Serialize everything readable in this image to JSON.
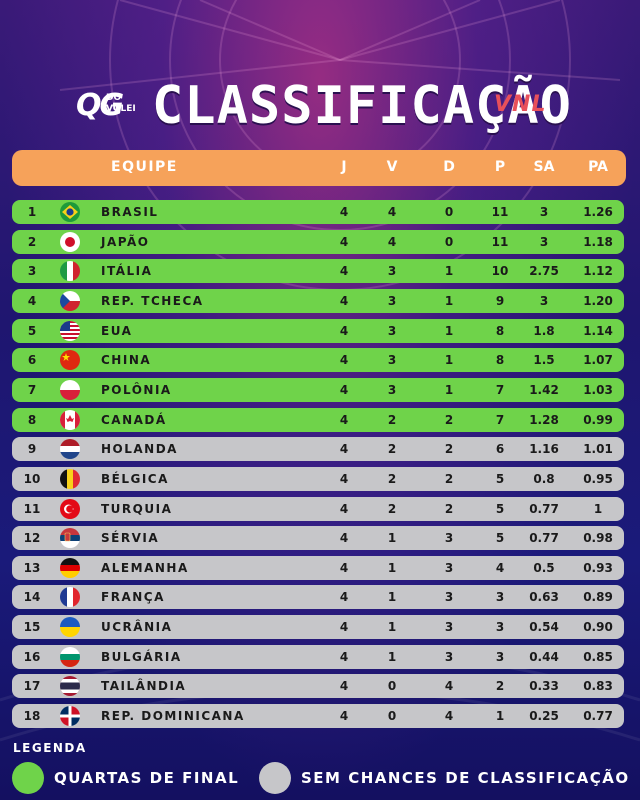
{
  "title": "CLASSIFICAÇÃO",
  "logo": {
    "main": "QG",
    "sub1": "DO",
    "sub2": "VOLEI"
  },
  "vnl": "VNL",
  "columns": {
    "team": "EQUIPE",
    "j": "J",
    "v": "V",
    "d": "D",
    "p": "P",
    "sa": "SA",
    "pa": "PA"
  },
  "colors": {
    "qualified": "#6fd34a",
    "eliminated": "#c6c6c9",
    "header": "#f6a25a"
  },
  "rows": [
    {
      "pos": "1",
      "team": "BRASIL",
      "flag": "brazil-flag-icon",
      "j": "4",
      "v": "4",
      "d": "0",
      "p": "11",
      "sa": "3",
      "pa": "1.26",
      "status": "q"
    },
    {
      "pos": "2",
      "team": "JAPÃO",
      "flag": "japan-flag-icon",
      "j": "4",
      "v": "4",
      "d": "0",
      "p": "11",
      "sa": "3",
      "pa": "1.18",
      "status": "q"
    },
    {
      "pos": "3",
      "team": "ITÁLIA",
      "flag": "italy-flag-icon",
      "j": "4",
      "v": "3",
      "d": "1",
      "p": "10",
      "sa": "2.75",
      "pa": "1.12",
      "status": "q"
    },
    {
      "pos": "4",
      "team": "REP. TCHECA",
      "flag": "czech-flag-icon",
      "j": "4",
      "v": "3",
      "d": "1",
      "p": "9",
      "sa": "3",
      "pa": "1.20",
      "status": "q"
    },
    {
      "pos": "5",
      "team": "EUA",
      "flag": "usa-flag-icon",
      "j": "4",
      "v": "3",
      "d": "1",
      "p": "8",
      "sa": "1.8",
      "pa": "1.14",
      "status": "q"
    },
    {
      "pos": "6",
      "team": "CHINA",
      "flag": "china-flag-icon",
      "j": "4",
      "v": "3",
      "d": "1",
      "p": "8",
      "sa": "1.5",
      "pa": "1.07",
      "status": "q"
    },
    {
      "pos": "7",
      "team": "POLÔNIA",
      "flag": "poland-flag-icon",
      "j": "4",
      "v": "3",
      "d": "1",
      "p": "7",
      "sa": "1.42",
      "pa": "1.03",
      "status": "q"
    },
    {
      "pos": "8",
      "team": "CANADÁ",
      "flag": "canada-flag-icon",
      "j": "4",
      "v": "2",
      "d": "2",
      "p": "7",
      "sa": "1.28",
      "pa": "0.99",
      "status": "q"
    },
    {
      "pos": "9",
      "team": "HOLANDA",
      "flag": "netherlands-flag-icon",
      "j": "4",
      "v": "2",
      "d": "2",
      "p": "6",
      "sa": "1.16",
      "pa": "1.01",
      "status": "s"
    },
    {
      "pos": "10",
      "team": "BÉLGICA",
      "flag": "belgium-flag-icon",
      "j": "4",
      "v": "2",
      "d": "2",
      "p": "5",
      "sa": "0.8",
      "pa": "0.95",
      "status": "s"
    },
    {
      "pos": "11",
      "team": "TURQUIA",
      "flag": "turkey-flag-icon",
      "j": "4",
      "v": "2",
      "d": "2",
      "p": "5",
      "sa": "0.77",
      "pa": "1",
      "status": "s"
    },
    {
      "pos": "12",
      "team": "SÉRVIA",
      "flag": "serbia-flag-icon",
      "j": "4",
      "v": "1",
      "d": "3",
      "p": "5",
      "sa": "0.77",
      "pa": "0.98",
      "status": "s"
    },
    {
      "pos": "13",
      "team": "ALEMANHA",
      "flag": "germany-flag-icon",
      "j": "4",
      "v": "1",
      "d": "3",
      "p": "4",
      "sa": "0.5",
      "pa": "0.93",
      "status": "s"
    },
    {
      "pos": "14",
      "team": "FRANÇA",
      "flag": "france-flag-icon",
      "j": "4",
      "v": "1",
      "d": "3",
      "p": "3",
      "sa": "0.63",
      "pa": "0.89",
      "status": "s"
    },
    {
      "pos": "15",
      "team": "UCRÂNIA",
      "flag": "ukraine-flag-icon",
      "j": "4",
      "v": "1",
      "d": "3",
      "p": "3",
      "sa": "0.54",
      "pa": "0.90",
      "status": "s"
    },
    {
      "pos": "16",
      "team": "BULGÁRIA",
      "flag": "bulgaria-flag-icon",
      "j": "4",
      "v": "1",
      "d": "3",
      "p": "3",
      "sa": "0.44",
      "pa": "0.85",
      "status": "s"
    },
    {
      "pos": "17",
      "team": "TAILÂNDIA",
      "flag": "thailand-flag-icon",
      "j": "4",
      "v": "0",
      "d": "4",
      "p": "2",
      "sa": "0.33",
      "pa": "0.83",
      "status": "s"
    },
    {
      "pos": "18",
      "team": "REP. DOMINICANA",
      "flag": "dominican-republic-flag-icon",
      "j": "4",
      "v": "0",
      "d": "4",
      "p": "1",
      "sa": "0.25",
      "pa": "0.77",
      "status": "s"
    }
  ],
  "legend": {
    "title": "LEGENDA",
    "qualified": "QUARTAS DE FINAL",
    "eliminated": "SEM CHANCES DE CLASSIFICAÇÃO"
  }
}
